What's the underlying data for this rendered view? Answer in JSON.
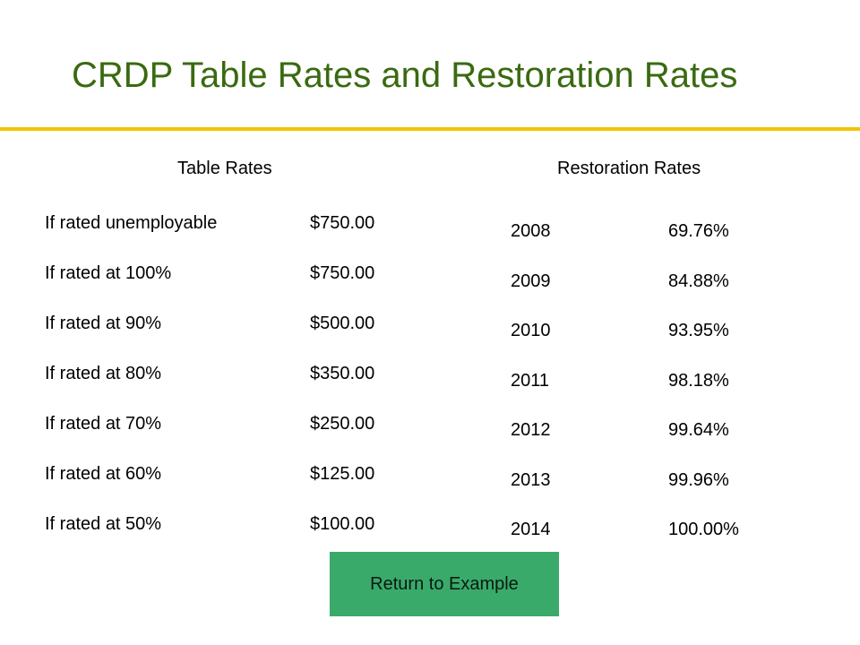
{
  "title": "CRDP Table Rates and Restoration Rates",
  "colors": {
    "title": "#3a6a10",
    "rule": "#f2c200",
    "button": "#3aaa6b"
  },
  "table_rates": {
    "heading": "Table Rates",
    "rows": [
      {
        "label": "If rated unemployable",
        "amount": "$750.00"
      },
      {
        "label": "If rated at 100%",
        "amount": "$750.00"
      },
      {
        "label": "If rated at 90%",
        "amount": "$500.00"
      },
      {
        "label": "If rated at 80%",
        "amount": "$350.00"
      },
      {
        "label": "If rated at 70%",
        "amount": "$250.00"
      },
      {
        "label": "If rated at 60%",
        "amount": "$125.00"
      },
      {
        "label": "If rated at 50%",
        "amount": "$100.00"
      }
    ]
  },
  "restoration_rates": {
    "heading": "Restoration Rates",
    "rows": [
      {
        "year": "2008",
        "rate": "69.76%"
      },
      {
        "year": "2009",
        "rate": "84.88%"
      },
      {
        "year": "2010",
        "rate": "93.95%"
      },
      {
        "year": "2011",
        "rate": "98.18%"
      },
      {
        "year": "2012",
        "rate": "99.64%"
      },
      {
        "year": "2013",
        "rate": "99.96%"
      },
      {
        "year": "2014",
        "rate": "100.00%"
      }
    ]
  },
  "return_button": {
    "label": "Return to Example"
  }
}
